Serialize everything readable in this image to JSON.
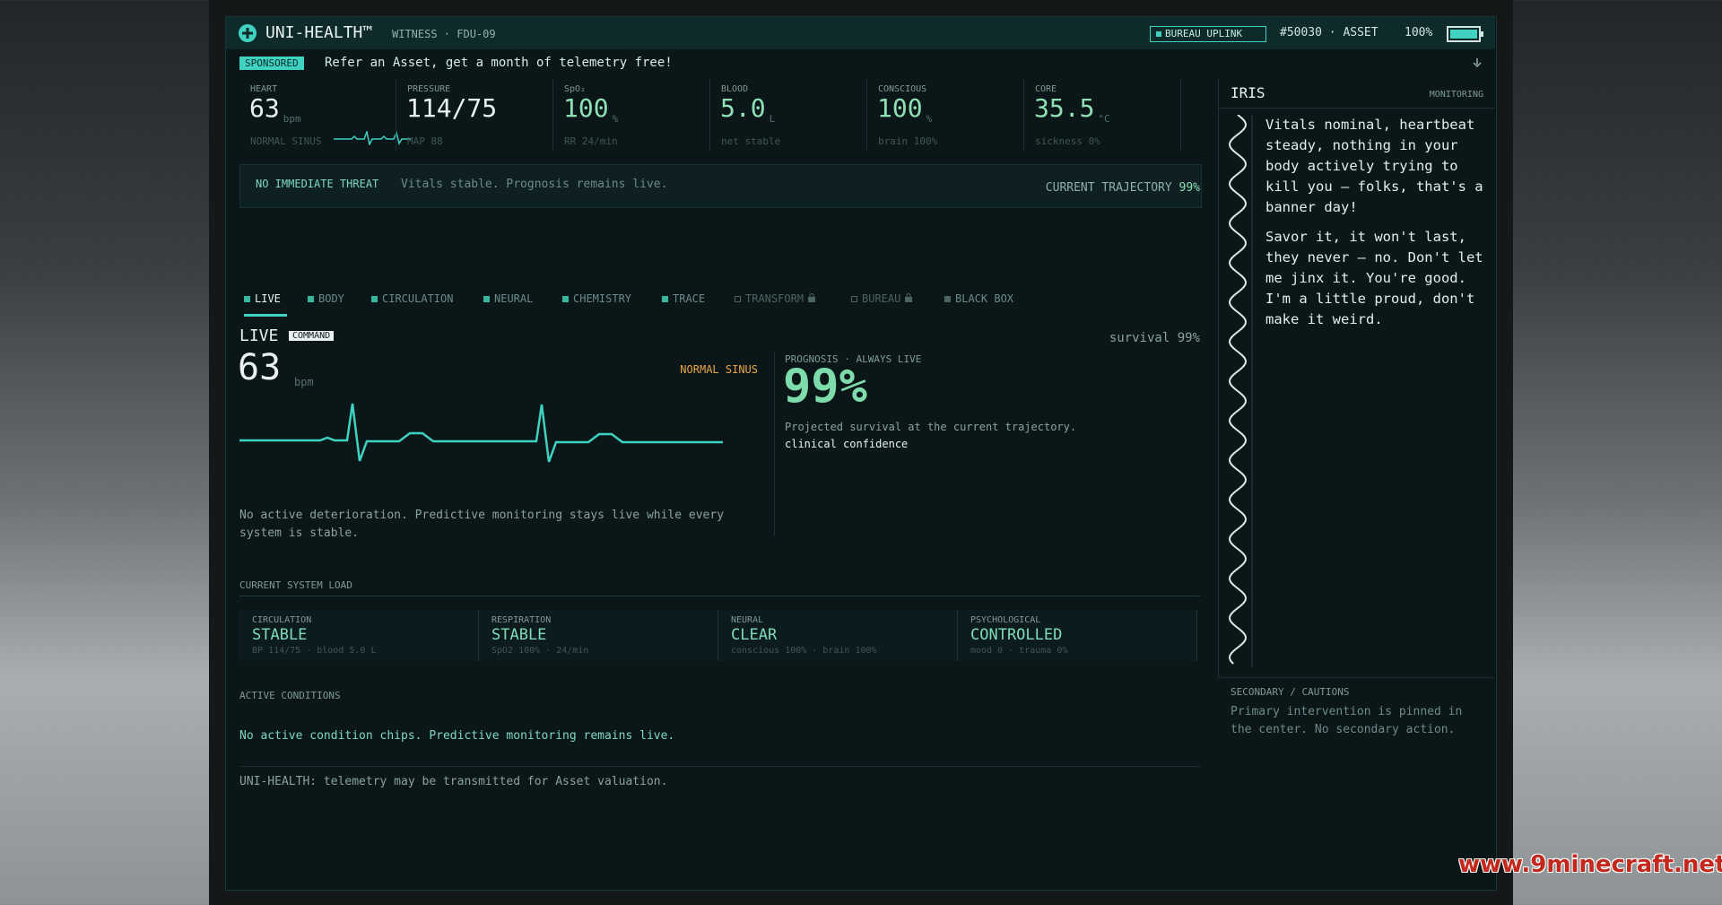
{
  "header": {
    "title": "UNI-HEALTH™",
    "subtitle": "WITNESS · FDU-09",
    "uplink": "BUREAU UPLINK",
    "asset_id": "#50030 · ASSET",
    "battery": "100%"
  },
  "sponsored": {
    "tag": "SPONSORED",
    "text": "Refer an Asset, get a month of telemetry free!"
  },
  "vitals": [
    {
      "label": "HEART",
      "value": "63",
      "unit": "bpm",
      "note": "NORMAL SINUS"
    },
    {
      "label": "PRESSURE",
      "value": "114/75",
      "note": "MAP 88"
    },
    {
      "label": "SpO₂",
      "value": "100",
      "unit": "%",
      "note": "RR 24/min"
    },
    {
      "label": "BLOOD",
      "value": "5.0",
      "unit": "L",
      "note": "net stable"
    },
    {
      "label": "CONSCIOUS",
      "value": "100",
      "unit": "%",
      "note": "brain 100%"
    },
    {
      "label": "CORE",
      "value": "35.5",
      "unit": "°C",
      "note": "sickness 0%"
    }
  ],
  "threat": {
    "status": "NO IMMEDIATE THREAT",
    "text": "Vitals stable. Prognosis remains live.",
    "trajectory_label": "CURRENT TRAJECTORY",
    "trajectory_value": "99%"
  },
  "tabs": [
    "LIVE",
    "BODY",
    "CIRCULATION",
    "NEURAL",
    "CHEMISTRY",
    "TRACE",
    "TRANSFORM",
    "BUREAU",
    "BLACK BOX"
  ],
  "live": {
    "title": "LIVE",
    "badge": "COMMAND",
    "survival": "survival 99%",
    "bpm": "63",
    "bpm_unit": "bpm",
    "rhythm": "NORMAL SINUS",
    "note": "No active deterioration. Predictive monitoring stays live while every system is stable.",
    "prognosis_label": "PROGNOSIS · ALWAYS LIVE",
    "prognosis_value": "99%",
    "prognosis_text": "Projected survival at the current trajectory.",
    "confidence": "clinical confidence"
  },
  "system_load": {
    "title": "CURRENT SYSTEM LOAD",
    "systems": [
      {
        "label": "CIRCULATION",
        "status": "STABLE",
        "detail": "BP 114/75 · blood 5.0 L"
      },
      {
        "label": "RESPIRATION",
        "status": "STABLE",
        "detail": "SpO2 100% · 24/min"
      },
      {
        "label": "NEURAL",
        "status": "CLEAR",
        "detail": "conscious 100% · brain 100%"
      },
      {
        "label": "PSYCHOLOGICAL",
        "status": "CONTROLLED",
        "detail": "mood 0 · trauma 0%"
      }
    ]
  },
  "conditions": {
    "title": "ACTIVE CONDITIONS",
    "text": "No active condition chips. Predictive monitoring remains live."
  },
  "footer": "UNI-HEALTH: telemetry may be transmitted for Asset valuation.",
  "iris": {
    "title": "IRIS",
    "status": "MONITORING",
    "paragraphs": [
      "Vitals nominal, heartbeat steady, nothing in your body actively trying to kill you — folks, that's a banner day!",
      "Savor it, it won't last, they never — no. Don't let me jinx it. You're good. I'm a little proud, don't make it weird."
    ]
  },
  "secondary": {
    "title": "SECONDARY / CAUTIONS",
    "text": "Primary intervention is pinned in the center. No secondary action."
  },
  "watermark": "www.9minecraft.net"
}
